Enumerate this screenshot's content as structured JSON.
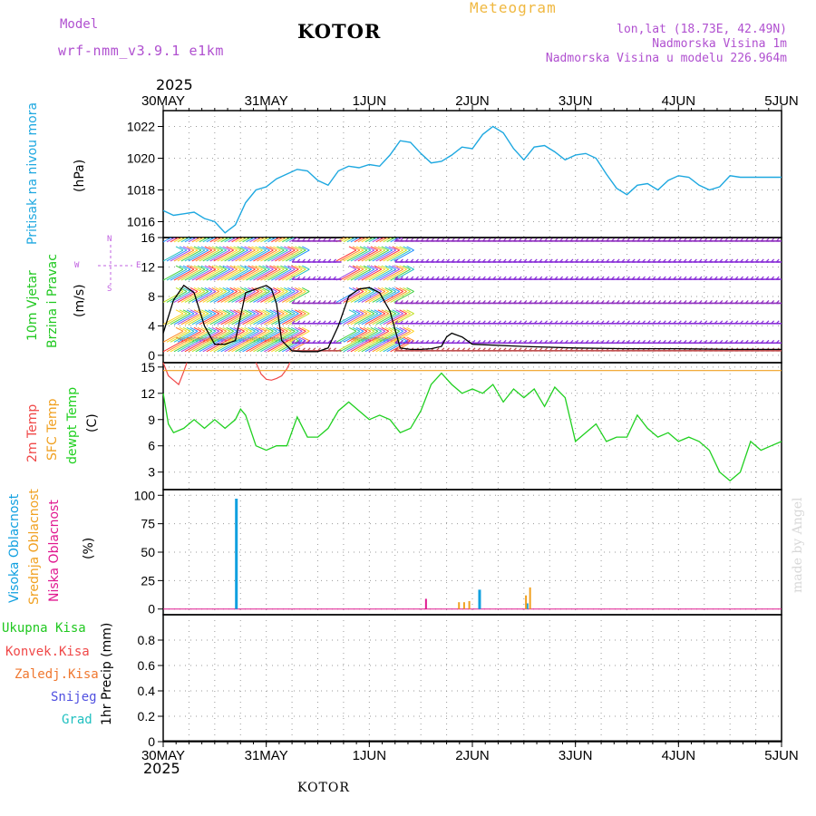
{
  "header": {
    "model_label": "Model",
    "model_name": "wrf-nmm_v3.9.1 e1km",
    "station": "KOTOR",
    "meteogram_label": "Meteogram",
    "coords": "lon,lat (18.73E, 42.49N)",
    "elevation": "Nadmorska Visina 1m",
    "model_elevation": "Nadmorska Visina u modelu 226.964m"
  },
  "footer": {
    "station": "KOTOR",
    "watermark": "made by Angel"
  },
  "colors": {
    "pressure": "#1ea8e0",
    "temp2m": "#f04848",
    "sfc_temp": "#f0a020",
    "dewpt": "#20d020",
    "wind_speed": "#000000",
    "cloud_high": "#10a0e0",
    "cloud_mid": "#f0a020",
    "cloud_low": "#e01890",
    "wind_label": "#20c820",
    "dir_label": "#c060e0",
    "meta_purple": "#b050d0",
    "meta_orange": "#f0b840"
  },
  "chart_data": [
    {
      "type": "line",
      "panel": "pressure",
      "ylabel": "(hPa)",
      "side_labels": [
        "Pritisak na nivou mora"
      ],
      "ylim": [
        1015,
        1023
      ],
      "yticks": [
        "1016",
        "1018",
        "1020",
        "1022"
      ],
      "x_year": "2025",
      "x_ticks": [
        "30MAY",
        "31MAY",
        "1JUN",
        "2JUN",
        "3JUN",
        "4JUN",
        "5JUN"
      ],
      "grid": true,
      "series": [
        {
          "name": "Pritisak na nivou mora",
          "x": [
            0,
            0.1,
            0.2,
            0.3,
            0.4,
            0.5,
            0.6,
            0.7,
            0.8,
            0.9,
            1.0,
            1.1,
            1.2,
            1.3,
            1.4,
            1.5,
            1.6,
            1.7,
            1.8,
            1.9,
            2.0,
            2.1,
            2.2,
            2.3,
            2.4,
            2.5,
            2.6,
            2.7,
            2.8,
            2.9,
            3.0,
            3.1,
            3.2,
            3.3,
            3.4,
            3.5,
            3.6,
            3.7,
            3.8,
            3.9,
            4.0,
            4.1,
            4.2,
            4.3,
            4.4,
            4.5,
            4.6,
            4.7,
            4.8,
            4.9,
            5.0,
            5.1,
            5.2,
            5.3,
            5.4,
            5.5,
            5.6,
            5.7,
            5.8,
            5.9,
            6.0
          ],
          "values": [
            1016.7,
            1016.4,
            1016.5,
            1016.6,
            1016.2,
            1016.0,
            1015.3,
            1015.8,
            1017.2,
            1018.0,
            1018.2,
            1018.7,
            1019.0,
            1019.3,
            1019.2,
            1018.6,
            1018.3,
            1019.2,
            1019.5,
            1019.4,
            1019.6,
            1019.5,
            1020.2,
            1021.1,
            1021.0,
            1020.3,
            1019.7,
            1019.8,
            1020.2,
            1020.7,
            1020.6,
            1021.5,
            1022.0,
            1021.6,
            1020.6,
            1019.9,
            1020.7,
            1020.8,
            1020.4,
            1019.9,
            1020.2,
            1020.3,
            1020.0,
            1019.0,
            1018.1,
            1017.7,
            1018.3,
            1018.4,
            1018.0,
            1018.6,
            1018.9,
            1018.8,
            1018.3,
            1018.0,
            1018.2,
            1018.9,
            1018.8,
            1018.8,
            1018.8,
            1018.8,
            1018.8
          ]
        }
      ]
    },
    {
      "type": "line",
      "panel": "wind",
      "ylabel": "(m/s)",
      "side_labels": [
        "10m Vjetar",
        "Brzina i Pravac"
      ],
      "compass": {
        "n": "N",
        "w": "W",
        "e": "E",
        "s": "S"
      },
      "ylim": [
        -1,
        16
      ],
      "yticks": [
        "0",
        "4",
        "8",
        "12",
        "16"
      ],
      "grid": true,
      "series": [
        {
          "name": "Brzina",
          "x": [
            0,
            0.1,
            0.2,
            0.3,
            0.4,
            0.5,
            0.6,
            0.7,
            0.8,
            0.9,
            1.0,
            1.05,
            1.1,
            1.15,
            1.25,
            1.35,
            1.5,
            1.6,
            1.7,
            1.8,
            1.9,
            2.0,
            2.1,
            2.2,
            2.3,
            2.4,
            2.5,
            2.6,
            2.7,
            2.75,
            2.8,
            2.9,
            3.0,
            3.5,
            4.0,
            4.5,
            5.0,
            5.5,
            6.0
          ],
          "values": [
            3.0,
            7.5,
            9.5,
            8.5,
            4.0,
            1.5,
            1.5,
            2.0,
            8.5,
            9.0,
            9.5,
            9.0,
            7.0,
            2.0,
            0.6,
            0.5,
            0.5,
            1.0,
            4.0,
            8.0,
            9.0,
            9.2,
            8.5,
            6.0,
            1.0,
            0.8,
            0.8,
            0.9,
            1.2,
            2.5,
            3.0,
            2.5,
            1.5,
            1.2,
            1.0,
            0.9,
            0.9,
            0.8,
            0.8
          ]
        }
      ]
    },
    {
      "type": "line",
      "panel": "temperature",
      "ylabel": "(C)",
      "side_labels": [
        "2m Temp",
        "SFC Temp",
        "dewpt Temp"
      ],
      "ylim": [
        1,
        15.5
      ],
      "yticks": [
        "3",
        "6",
        "9",
        "12",
        "15"
      ],
      "grid": true,
      "series": [
        {
          "name": "2m Temp",
          "x": [
            0,
            0.05,
            0.1,
            0.15,
            0.2,
            0.23,
            0.9,
            0.95,
            1.0,
            1.05,
            1.1,
            1.15,
            1.2,
            1.23
          ],
          "values": [
            15.5,
            14.0,
            13.5,
            13.0,
            14.5,
            15.5,
            15.5,
            14.2,
            13.6,
            13.5,
            13.7,
            14.0,
            14.8,
            15.5
          ]
        },
        {
          "name": "SFC Temp",
          "x": [
            0,
            6.0
          ],
          "values": [
            14.6,
            14.6
          ]
        },
        {
          "name": "dewpt Temp",
          "x": [
            0,
            0.05,
            0.1,
            0.2,
            0.3,
            0.4,
            0.5,
            0.6,
            0.7,
            0.75,
            0.8,
            0.9,
            1.0,
            1.1,
            1.2,
            1.3,
            1.4,
            1.5,
            1.6,
            1.7,
            1.8,
            1.9,
            2.0,
            2.1,
            2.2,
            2.3,
            2.4,
            2.5,
            2.6,
            2.7,
            2.8,
            2.9,
            3.0,
            3.1,
            3.2,
            3.3,
            3.4,
            3.5,
            3.6,
            3.7,
            3.8,
            3.9,
            4.0,
            4.1,
            4.2,
            4.3,
            4.4,
            4.5,
            4.6,
            4.7,
            4.8,
            4.9,
            5.0,
            5.1,
            5.2,
            5.3,
            5.4,
            5.5,
            5.6,
            5.7,
            5.8,
            5.9,
            6.0
          ],
          "values": [
            12.0,
            8.5,
            7.5,
            8.0,
            9.0,
            8.0,
            9.0,
            8.0,
            9.0,
            10.2,
            9.5,
            6.0,
            5.5,
            6.0,
            6.0,
            9.3,
            7.0,
            7.0,
            8.0,
            10.0,
            11.0,
            10.0,
            9.0,
            9.5,
            9.0,
            7.5,
            8.0,
            10.0,
            13.0,
            14.3,
            13.0,
            12.0,
            12.5,
            12.0,
            13.0,
            11.0,
            12.5,
            11.5,
            12.5,
            10.5,
            12.7,
            11.5,
            6.5,
            7.5,
            8.5,
            6.5,
            7.0,
            7.0,
            9.5,
            8.0,
            7.0,
            7.5,
            6.5,
            7.0,
            6.5,
            5.5,
            3.0,
            2.0,
            3.0,
            6.5,
            5.5,
            6.0,
            6.5
          ]
        }
      ]
    },
    {
      "type": "bar",
      "panel": "clouds",
      "ylabel": "(%)",
      "side_labels": [
        "Visoka Oblacnost",
        "Srednja Oblacnost",
        "Niska Oblacnost"
      ],
      "ylim": [
        -5,
        105
      ],
      "yticks": [
        "0",
        "25",
        "50",
        "75",
        "100"
      ],
      "grid": true,
      "series": [
        {
          "name": "Visoka Oblacnost",
          "x": [
            0.71,
            3.07,
            3.53
          ],
          "values": [
            97,
            17,
            5
          ]
        },
        {
          "name": "Srednja Oblacnost",
          "x": [
            2.87,
            2.92,
            2.97,
            3.52,
            3.56
          ],
          "values": [
            6,
            6,
            7,
            12,
            19
          ]
        },
        {
          "name": "Niska Oblacnost",
          "x": [
            2.55
          ],
          "values": [
            9
          ]
        }
      ]
    },
    {
      "type": "bar",
      "panel": "precipitation",
      "ylabel": "1hr Precip (mm)",
      "side_labels": [
        "Ukupna Kisa",
        "Konvek.Kisa",
        "Zaledj.Kisa",
        "Snijeg",
        "Grad"
      ],
      "ylim": [
        0,
        1.0
      ],
      "yticks": [
        "0",
        "0.2",
        "0.4",
        "0.6",
        "0.8"
      ],
      "grid": true,
      "series": []
    }
  ]
}
